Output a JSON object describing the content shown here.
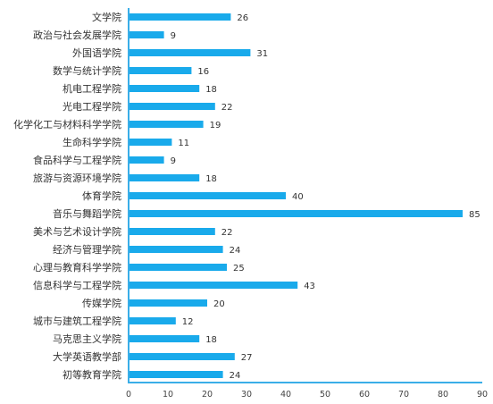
{
  "chart_data": {
    "type": "bar",
    "orientation": "horizontal",
    "title": "",
    "xlabel": "",
    "ylabel": "",
    "xlim": [
      0,
      90
    ],
    "xticks": [
      0,
      10,
      20,
      30,
      40,
      50,
      60,
      70,
      80,
      90
    ],
    "grid": false,
    "legend": "none",
    "bar_color": "#19aaeb",
    "axis_color": "#3aaee8",
    "categories": [
      "文学院",
      "政治与社会发展学院",
      "外国语学院",
      "数学与统计学院",
      "机电工程学院",
      "光电工程学院",
      "化学化工与材料科学学院",
      "生命科学学院",
      "食品科学与工程学院",
      "旅游与资源环境学院",
      "体育学院",
      "音乐与舞蹈学院",
      "美术与艺术设计学院",
      "经济与管理学院",
      "心理与教育科学学院",
      "信息科学与工程学院",
      "传媒学院",
      "城市与建筑工程学院",
      "马克思主义学院",
      "大学英语教学部",
      "初等教育学院"
    ],
    "values": [
      26,
      9,
      31,
      16,
      18,
      22,
      19,
      11,
      9,
      18,
      40,
      85,
      22,
      24,
      25,
      43,
      20,
      12,
      18,
      27,
      24
    ]
  }
}
